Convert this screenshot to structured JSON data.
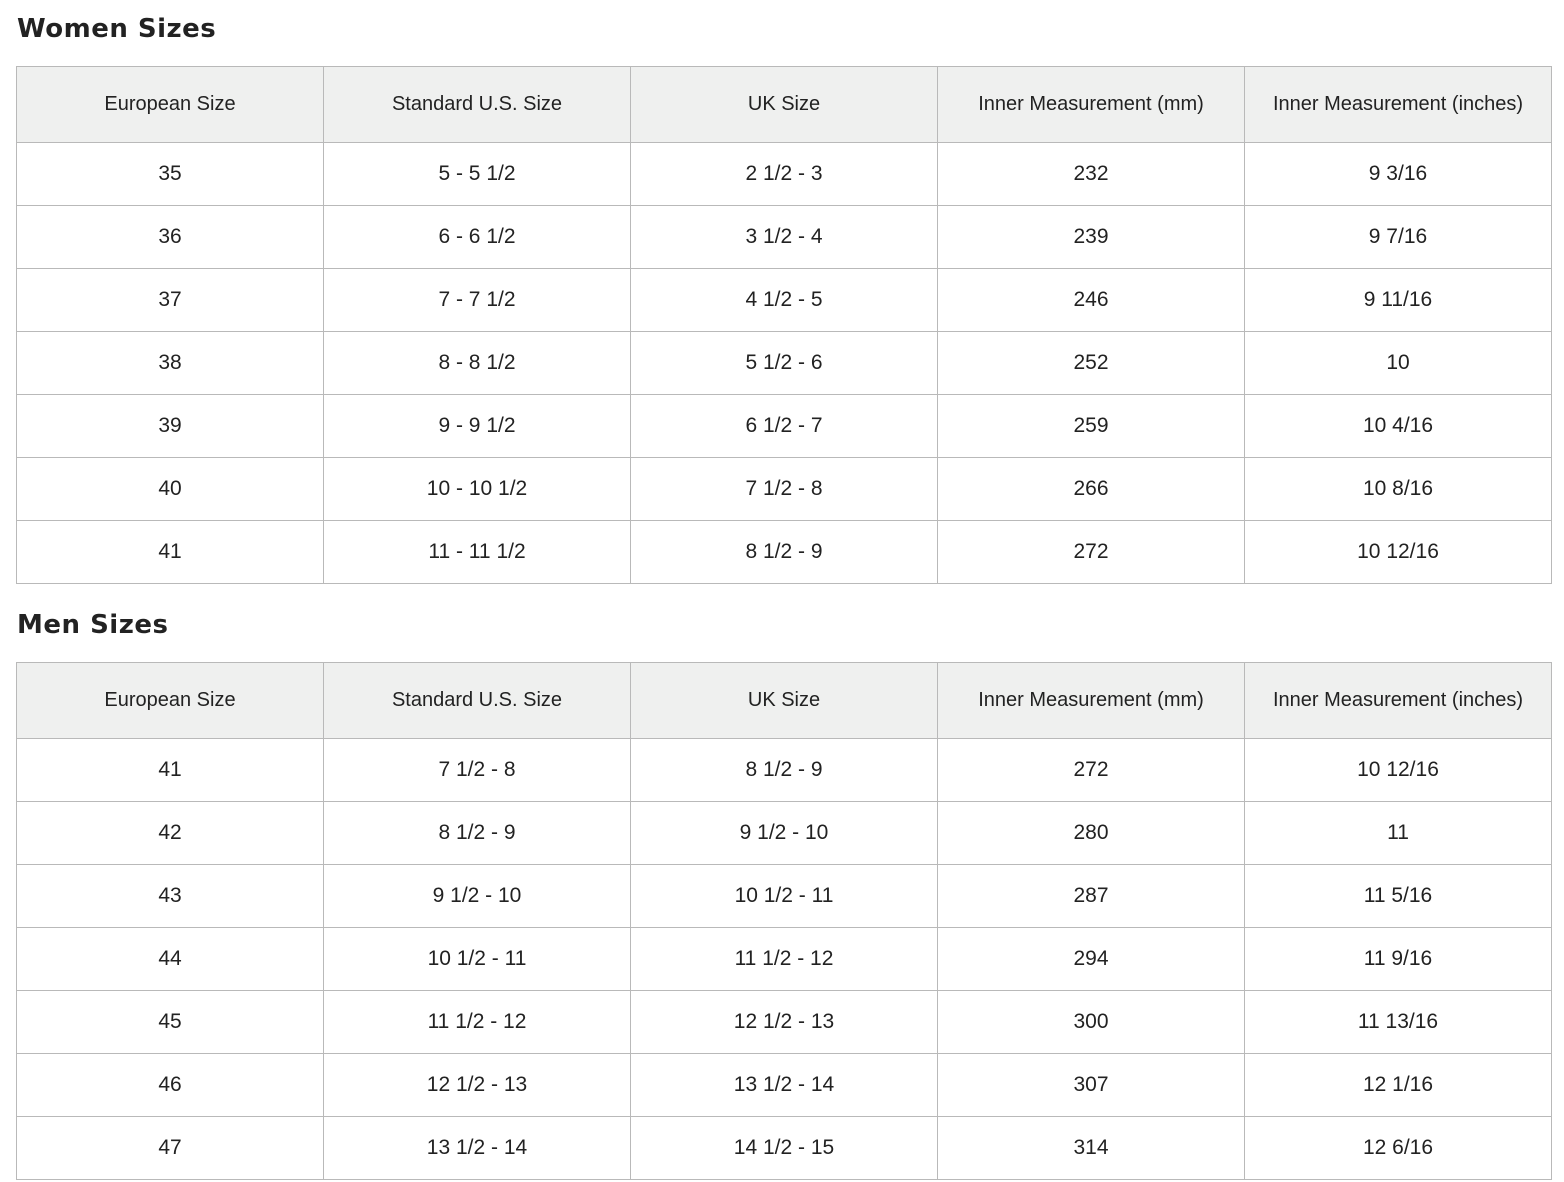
{
  "columns": [
    "European Size",
    "Standard U.S. Size",
    "UK Size",
    "Inner Measurement (mm)",
    "Inner Measurement (inches)"
  ],
  "women": {
    "title": "Women Sizes",
    "rows": [
      [
        "35",
        "5 - 5 1/2",
        "2 1/2 - 3",
        "232",
        "9 3/16"
      ],
      [
        "36",
        "6 - 6 1/2",
        "3 1/2 - 4",
        "239",
        "9 7/16"
      ],
      [
        "37",
        "7 - 7 1/2",
        "4 1/2 - 5",
        "246",
        "9 11/16"
      ],
      [
        "38",
        "8 - 8 1/2",
        "5 1/2 - 6",
        "252",
        "10"
      ],
      [
        "39",
        "9 - 9 1/2",
        "6 1/2 - 7",
        "259",
        "10 4/16"
      ],
      [
        "40",
        "10 - 10 1/2",
        "7 1/2 - 8",
        "266",
        "10 8/16"
      ],
      [
        "41",
        "11 - 11 1/2",
        "8 1/2 - 9",
        "272",
        "10 12/16"
      ]
    ]
  },
  "men": {
    "title": "Men Sizes",
    "rows": [
      [
        "41",
        "7 1/2 - 8",
        "8 1/2 - 9",
        "272",
        "10 12/16"
      ],
      [
        "42",
        "8 1/2 - 9",
        "9 1/2 - 10",
        "280",
        "11"
      ],
      [
        "43",
        "9 1/2 - 10",
        "10 1/2 - 11",
        "287",
        "11 5/16"
      ],
      [
        "44",
        "10 1/2 - 11",
        "11 1/2 - 12",
        "294",
        "11 9/16"
      ],
      [
        "45",
        "11 1/2 - 12",
        "12 1/2 - 13",
        "300",
        "11 13/16"
      ],
      [
        "46",
        "12 1/2 - 13",
        "13 1/2 - 14",
        "307",
        "12 1/16"
      ],
      [
        "47",
        "13 1/2 - 14",
        "14 1/2 - 15",
        "314",
        "12 6/16"
      ]
    ]
  }
}
